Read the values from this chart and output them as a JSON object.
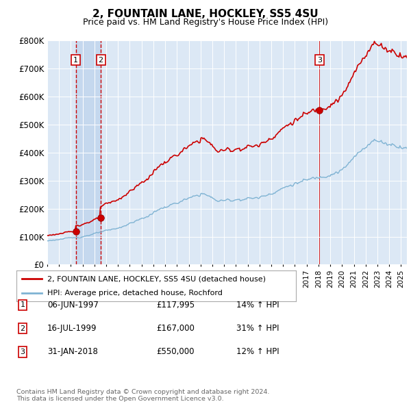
{
  "title": "2, FOUNTAIN LANE, HOCKLEY, SS5 4SU",
  "subtitle": "Price paid vs. HM Land Registry's House Price Index (HPI)",
  "ylim": [
    0,
    800000
  ],
  "yticks": [
    0,
    100000,
    200000,
    300000,
    400000,
    500000,
    600000,
    700000,
    800000
  ],
  "ytick_labels": [
    "£0",
    "£100K",
    "£200K",
    "£300K",
    "£400K",
    "£500K",
    "£600K",
    "£700K",
    "£800K"
  ],
  "sale_prices": [
    117995,
    167000,
    550000
  ],
  "sale_labels": [
    "1",
    "2",
    "3"
  ],
  "price_line_color": "#cc0000",
  "hpi_line_color": "#7fb3d3",
  "vline_color_dashed": "#cc0000",
  "background_color": "#dce8f5",
  "shade_color": "#c5d8ee",
  "legend_entries": [
    "2, FOUNTAIN LANE, HOCKLEY, SS5 4SU (detached house)",
    "HPI: Average price, detached house, Rochford"
  ],
  "table_rows": [
    [
      "1",
      "06-JUN-1997",
      "£117,995",
      "14% ↑ HPI"
    ],
    [
      "2",
      "16-JUL-1999",
      "£167,000",
      "31% ↑ HPI"
    ],
    [
      "3",
      "31-JAN-2018",
      "£550,000",
      "12% ↑ HPI"
    ]
  ],
  "footnote": "Contains HM Land Registry data © Crown copyright and database right 2024.\nThis data is licensed under the Open Government Licence v3.0.",
  "xlim_start": 1995.0,
  "xlim_end": 2025.5
}
